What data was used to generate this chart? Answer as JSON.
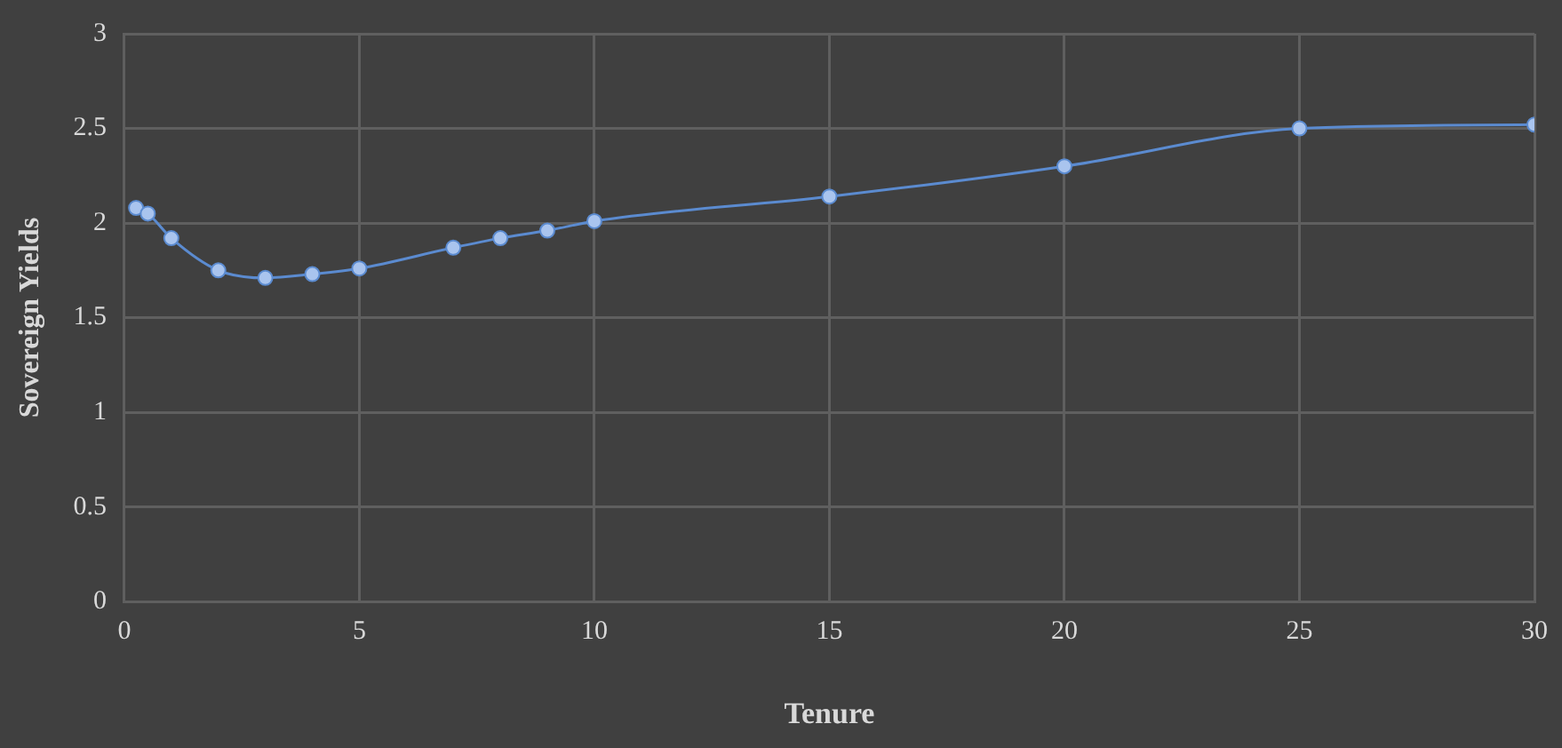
{
  "chart_data": {
    "type": "line",
    "xlabel": "Tenure",
    "ylabel": "Sovereign Yields",
    "x": [
      0.25,
      0.5,
      1,
      2,
      3,
      4,
      5,
      7,
      8,
      9,
      10,
      15,
      20,
      25,
      30
    ],
    "series": [
      {
        "color": "#5b8bd0",
        "values": [
          2.08,
          2.05,
          1.92,
          1.75,
          1.71,
          1.73,
          1.76,
          1.87,
          1.92,
          1.96,
          2.01,
          2.14,
          2.3,
          2.5,
          2.52
        ]
      }
    ],
    "xlim": [
      0,
      30
    ],
    "xticks": [
      0,
      5,
      10,
      15,
      20,
      25,
      30
    ],
    "ylim": [
      0,
      3
    ],
    "yticks": [
      0,
      0.5,
      1,
      1.5,
      2,
      2.5,
      3
    ],
    "grid": true,
    "legend": false,
    "marker": "circle",
    "line_style": "solid"
  }
}
